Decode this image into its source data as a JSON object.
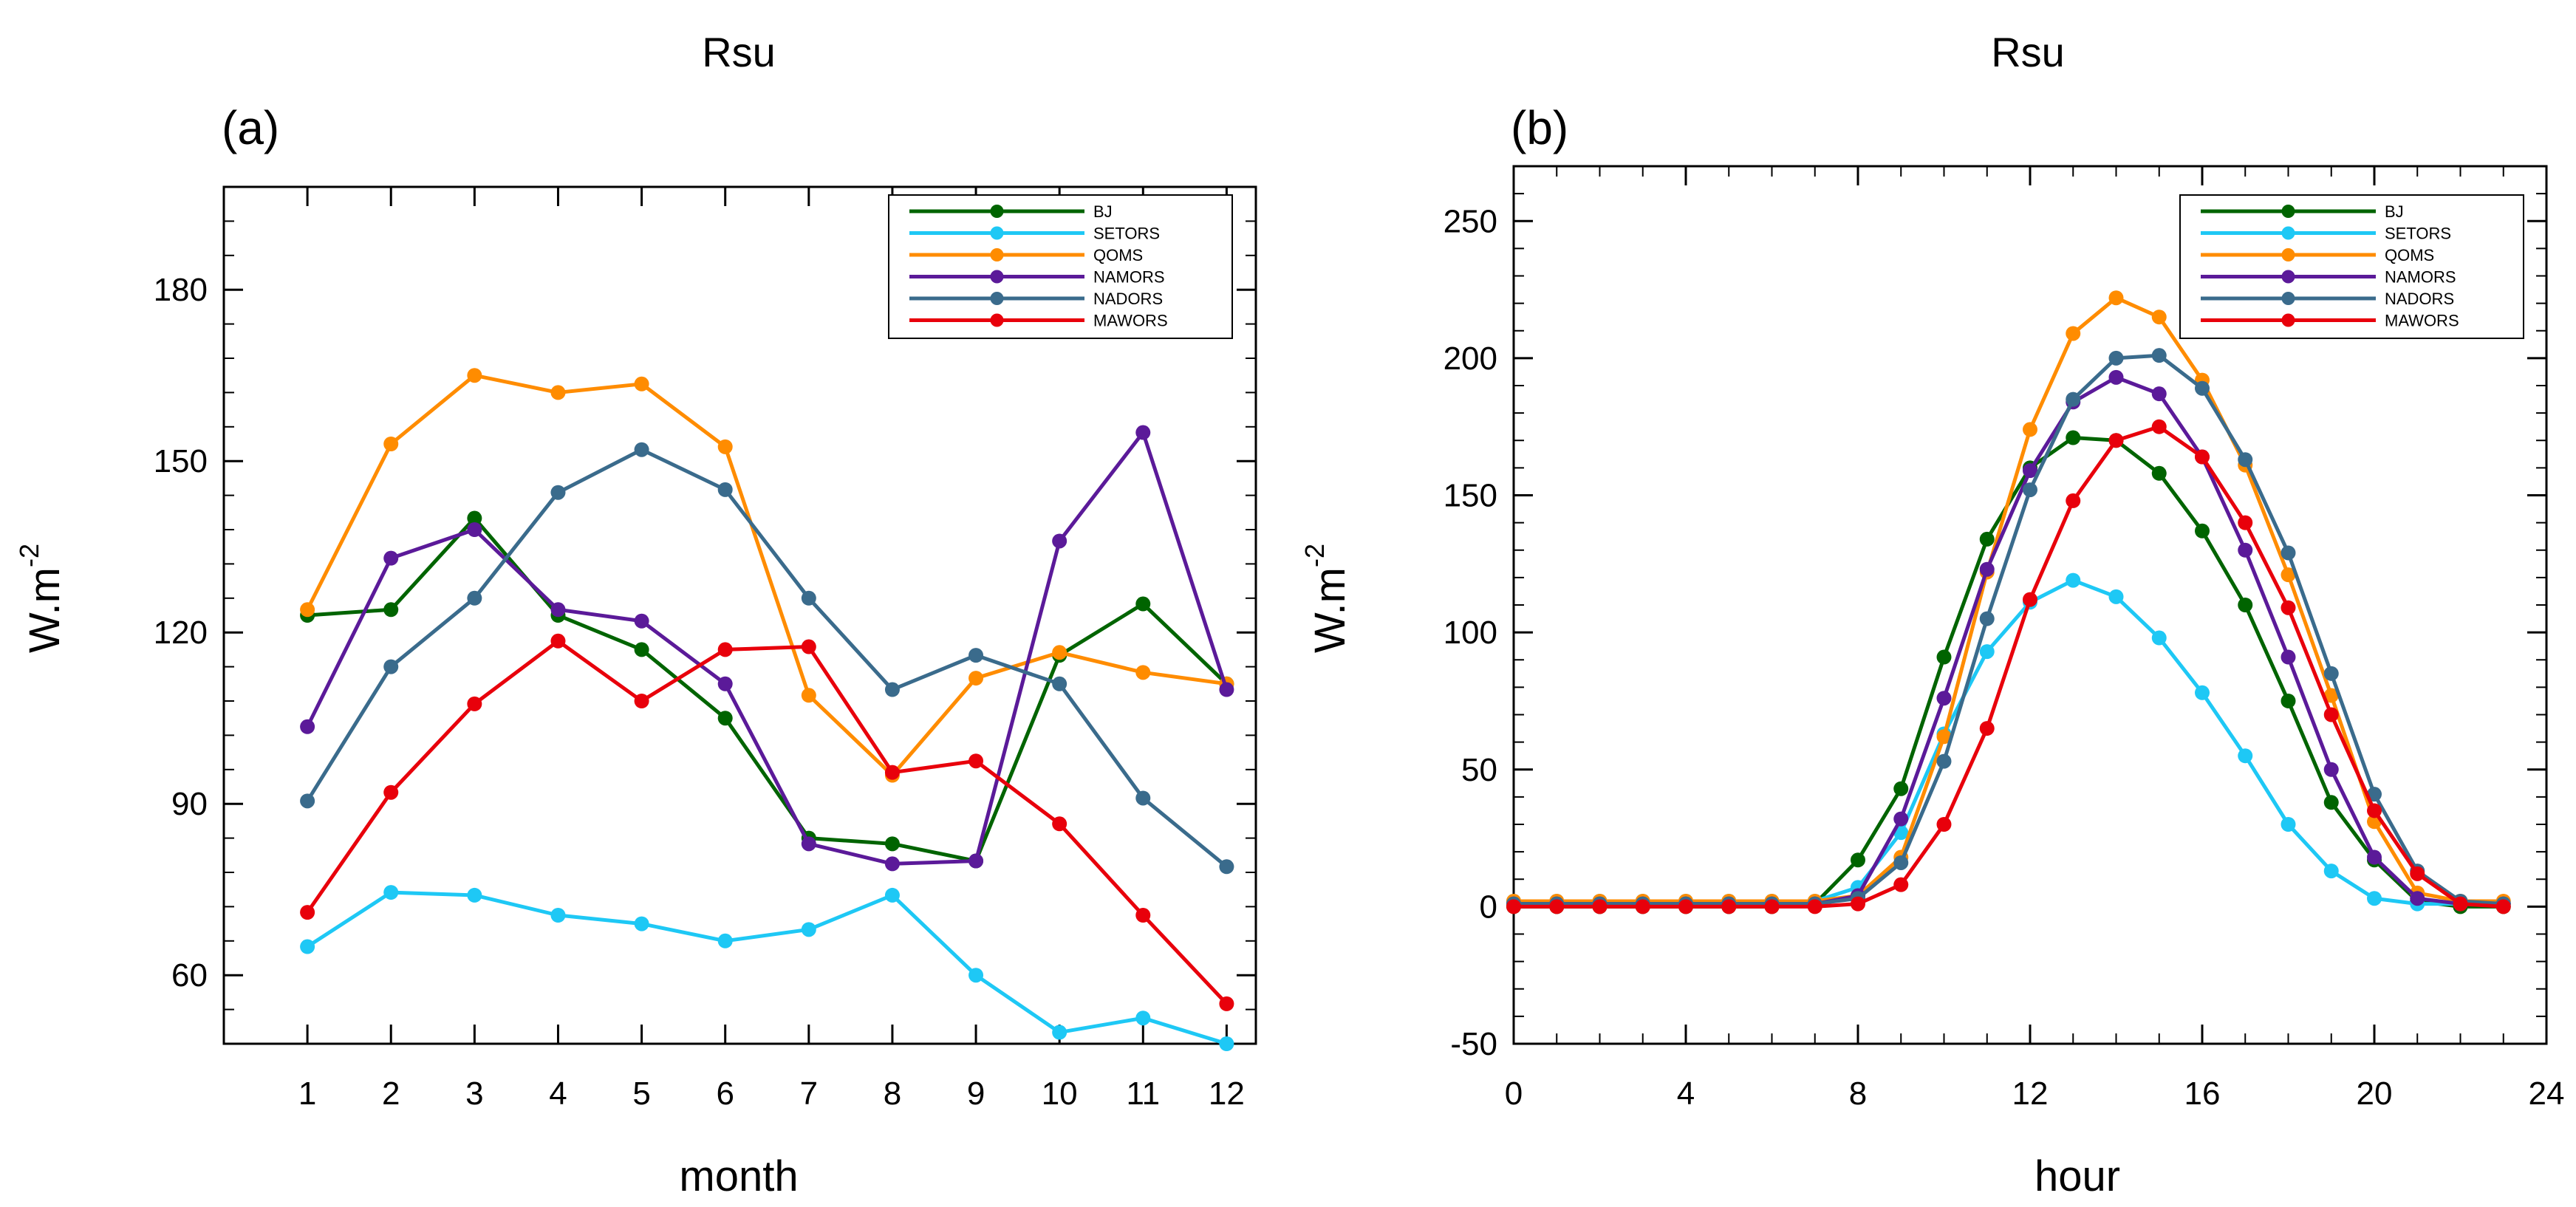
{
  "chart_data": [
    {
      "type": "line",
      "panel_label": "(a)",
      "title": "Rsu",
      "xlabel": "month",
      "ylabel_base": "W.m",
      "ylabel_exp": "-2",
      "xlim": [
        0,
        12.35
      ],
      "ylim": [
        48,
        198
      ],
      "x": [
        1,
        2,
        3,
        4,
        5,
        6,
        7,
        8,
        9,
        10,
        11,
        12
      ],
      "x_ticks": [
        "1",
        "2",
        "3",
        "4",
        "5",
        "6",
        "7",
        "8",
        "9",
        "10",
        "11",
        "12"
      ],
      "y_ticks": [
        "60",
        "90",
        "120",
        "150",
        "180"
      ],
      "legend_position": "top-right",
      "series": [
        {
          "name": "BJ",
          "color": "#006400",
          "values": [
            123,
            124,
            140,
            123,
            117,
            105,
            84,
            83,
            80,
            116,
            125,
            111
          ]
        },
        {
          "name": "SETORS",
          "color": "#1ec8f5",
          "values": [
            65,
            74.5,
            74,
            70.5,
            69,
            66,
            68,
            74,
            60,
            50,
            52.5,
            48
          ]
        },
        {
          "name": "QOMS",
          "color": "#ff8c00",
          "values": [
            124,
            153,
            165,
            162,
            163.5,
            152.5,
            109,
            95,
            112,
            116.5,
            113,
            111
          ]
        },
        {
          "name": "NAMORS",
          "color": "#5b1a99",
          "values": [
            103.5,
            133,
            138,
            124,
            122,
            111,
            83,
            79.5,
            80,
            136,
            155,
            110
          ]
        },
        {
          "name": "NADORS",
          "color": "#3a6b8c",
          "values": [
            90.5,
            114,
            126,
            144.5,
            152,
            145,
            126,
            110,
            116,
            111,
            91,
            79
          ]
        },
        {
          "name": "MAWORS",
          "color": "#e8000b",
          "values": [
            71,
            92,
            107.5,
            118.5,
            108,
            117,
            117.5,
            95.5,
            97.5,
            86.5,
            70.5,
            55
          ]
        }
      ]
    },
    {
      "type": "line",
      "panel_label": "(b)",
      "title": "Rsu",
      "xlabel": "hour",
      "ylabel_base": "W.m",
      "ylabel_exp": "-2",
      "xlim": [
        0,
        24
      ],
      "ylim": [
        -50,
        270
      ],
      "x": [
        0,
        1,
        2,
        3,
        4,
        5,
        6,
        7,
        8,
        9,
        10,
        11,
        12,
        13,
        14,
        15,
        16,
        17,
        18,
        19,
        20,
        21,
        22,
        23
      ],
      "x_ticks": [
        "0",
        "4",
        "8",
        "12",
        "16",
        "20",
        "24"
      ],
      "y_ticks": [
        "-50",
        "0",
        "50",
        "100",
        "150",
        "200",
        "250"
      ],
      "legend_position": "top-right",
      "series": [
        {
          "name": "BJ",
          "color": "#006400",
          "values": [
            0,
            0,
            0,
            0,
            0,
            0,
            0,
            1,
            17,
            43,
            91,
            134,
            160,
            171,
            170,
            158,
            137,
            110,
            75,
            38,
            17,
            2,
            0,
            0
          ]
        },
        {
          "name": "SETORS",
          "color": "#1ec8f5",
          "values": [
            2,
            2,
            2,
            2,
            2,
            2,
            2,
            2,
            7,
            27,
            63,
            93,
            111,
            119,
            113,
            98,
            78,
            55,
            30,
            13,
            3,
            1,
            1,
            1
          ]
        },
        {
          "name": "QOMS",
          "color": "#ff8c00",
          "values": [
            2,
            2,
            2,
            2,
            2,
            2,
            2,
            2,
            4,
            18,
            62,
            122,
            174,
            209,
            222,
            215,
            192,
            161,
            121,
            77,
            31,
            5,
            2,
            2
          ]
        },
        {
          "name": "NAMORS",
          "color": "#5b1a99",
          "values": [
            1,
            1,
            1,
            1,
            1,
            1,
            1,
            1,
            4,
            32,
            76,
            123,
            159,
            184,
            193,
            187,
            164,
            130,
            91,
            50,
            18,
            3,
            1,
            1
          ]
        },
        {
          "name": "NADORS",
          "color": "#3a6b8c",
          "values": [
            1,
            1,
            1,
            1,
            1,
            1,
            1,
            1,
            3,
            16,
            53,
            105,
            152,
            185,
            200,
            201,
            189,
            163,
            129,
            85,
            41,
            13,
            2,
            1
          ]
        },
        {
          "name": "MAWORS",
          "color": "#e8000b",
          "values": [
            0,
            0,
            0,
            0,
            0,
            0,
            0,
            0,
            1,
            8,
            30,
            65,
            112,
            148,
            170,
            175,
            164,
            140,
            109,
            70,
            35,
            12,
            1,
            0
          ]
        }
      ]
    }
  ]
}
